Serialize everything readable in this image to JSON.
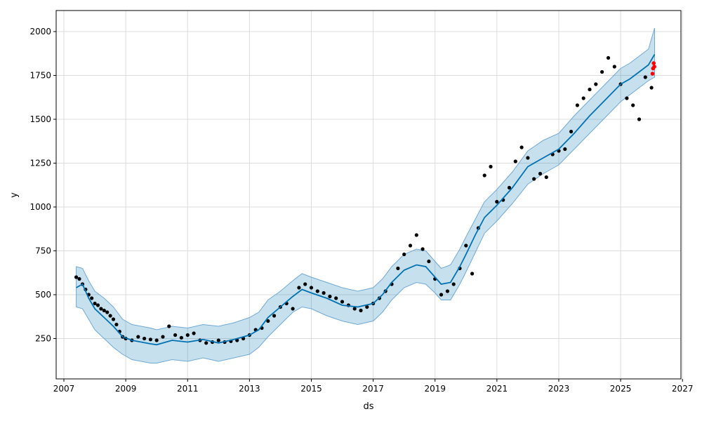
{
  "chart_data": {
    "type": "line",
    "title": "",
    "xlabel": "ds",
    "ylabel": "y",
    "xlim": [
      2006.75,
      2026.95
    ],
    "ylim": [
      20,
      2120
    ],
    "x_ticks": [
      2007,
      2009,
      2011,
      2013,
      2015,
      2017,
      2019,
      2021,
      2023,
      2025,
      2027
    ],
    "y_ticks": [
      250,
      500,
      750,
      1000,
      1250,
      1500,
      1750,
      2000
    ],
    "grid": true,
    "colors": {
      "forecast_line": "#0072B2",
      "uncertainty_band": "#0072B2",
      "observations": "#000000",
      "recent_actuals": "#FF0000"
    },
    "series": [
      {
        "kind": "uncertainty",
        "x": [
          2007.4,
          2007.6,
          2007.8,
          2008.0,
          2008.3,
          2008.6,
          2008.9,
          2009.2,
          2009.5,
          2009.8,
          2010.0,
          2010.5,
          2011.0,
          2011.5,
          2012.0,
          2012.5,
          2013.0,
          2013.3,
          2013.6,
          2014.0,
          2014.4,
          2014.7,
          2015.0,
          2015.5,
          2016.0,
          2016.5,
          2017.0,
          2017.3,
          2017.6,
          2018.0,
          2018.4,
          2018.7,
          2019.0,
          2019.2,
          2019.5,
          2019.8,
          2020.0,
          2020.3,
          2020.6,
          2021.0,
          2021.5,
          2022.0,
          2022.5,
          2023.0,
          2023.5,
          2024.0,
          2024.5,
          2025.0,
          2025.3,
          2025.6,
          2025.9,
          2026.1
        ],
        "upper": [
          660,
          650,
          580,
          520,
          480,
          430,
          360,
          330,
          320,
          310,
          300,
          320,
          310,
          330,
          320,
          340,
          370,
          400,
          470,
          520,
          580,
          620,
          600,
          570,
          540,
          520,
          540,
          590,
          660,
          730,
          760,
          750,
          690,
          650,
          670,
          760,
          830,
          930,
          1030,
          1100,
          1200,
          1320,
          1380,
          1420,
          1520,
          1610,
          1700,
          1790,
          1820,
          1860,
          1900,
          2020
        ],
        "lower": [
          430,
          420,
          360,
          300,
          250,
          200,
          160,
          130,
          120,
          110,
          110,
          130,
          120,
          140,
          120,
          140,
          160,
          200,
          260,
          330,
          400,
          430,
          420,
          380,
          350,
          330,
          350,
          400,
          470,
          540,
          570,
          560,
          510,
          470,
          470,
          560,
          630,
          740,
          850,
          920,
          1020,
          1130,
          1190,
          1240,
          1330,
          1420,
          1510,
          1600,
          1640,
          1680,
          1720,
          1740
        ]
      },
      {
        "kind": "forecast",
        "x": [
          2007.4,
          2007.6,
          2007.8,
          2008.0,
          2008.3,
          2008.6,
          2008.9,
          2009.2,
          2009.5,
          2009.8,
          2010.0,
          2010.5,
          2011.0,
          2011.5,
          2012.0,
          2012.5,
          2013.0,
          2013.3,
          2013.6,
          2014.0,
          2014.4,
          2014.7,
          2015.0,
          2015.5,
          2016.0,
          2016.5,
          2017.0,
          2017.3,
          2017.6,
          2018.0,
          2018.4,
          2018.7,
          2019.0,
          2019.2,
          2019.5,
          2019.8,
          2020.0,
          2020.3,
          2020.6,
          2021.0,
          2021.5,
          2022.0,
          2022.5,
          2023.0,
          2023.5,
          2024.0,
          2024.5,
          2025.0,
          2025.3,
          2025.6,
          2025.9,
          2026.1
        ],
        "y": [
          540,
          560,
          480,
          420,
          370,
          320,
          260,
          240,
          230,
          220,
          215,
          240,
          230,
          245,
          225,
          245,
          270,
          300,
          370,
          430,
          490,
          530,
          510,
          480,
          440,
          430,
          450,
          500,
          570,
          640,
          670,
          660,
          600,
          560,
          570,
          660,
          730,
          840,
          940,
          1010,
          1110,
          1230,
          1280,
          1330,
          1420,
          1520,
          1610,
          1700,
          1730,
          1770,
          1810,
          1870
        ]
      },
      {
        "kind": "observed",
        "x": [
          2007.4,
          2007.5,
          2007.6,
          2007.7,
          2007.8,
          2007.9,
          2008.0,
          2008.1,
          2008.2,
          2008.3,
          2008.4,
          2008.5,
          2008.6,
          2008.7,
          2008.8,
          2008.9,
          2009.0,
          2009.2,
          2009.4,
          2009.6,
          2009.8,
          2010.0,
          2010.2,
          2010.4,
          2010.6,
          2010.8,
          2011.0,
          2011.2,
          2011.4,
          2011.6,
          2011.8,
          2012.0,
          2012.2,
          2012.4,
          2012.6,
          2012.8,
          2013.0,
          2013.2,
          2013.4,
          2013.6,
          2013.8,
          2014.0,
          2014.2,
          2014.4,
          2014.6,
          2014.8,
          2015.0,
          2015.2,
          2015.4,
          2015.6,
          2015.8,
          2016.0,
          2016.2,
          2016.4,
          2016.6,
          2016.8,
          2017.0,
          2017.2,
          2017.4,
          2017.6,
          2017.8,
          2018.0,
          2018.2,
          2018.4,
          2018.6,
          2018.8,
          2019.0,
          2019.2,
          2019.4,
          2019.6,
          2019.8,
          2020.0,
          2020.2,
          2020.4,
          2020.6,
          2020.8,
          2021.0,
          2021.2,
          2021.4,
          2021.6,
          2021.8,
          2022.0,
          2022.2,
          2022.4,
          2022.6,
          2022.8,
          2023.0,
          2023.2,
          2023.4,
          2023.6,
          2023.8,
          2024.0,
          2024.2,
          2024.4,
          2024.6,
          2024.8,
          2025.0,
          2025.2,
          2025.4,
          2025.6,
          2025.8,
          2026.0
        ],
        "y": [
          600,
          590,
          560,
          530,
          500,
          480,
          450,
          440,
          420,
          410,
          400,
          380,
          360,
          330,
          290,
          260,
          250,
          240,
          260,
          250,
          245,
          240,
          260,
          320,
          270,
          255,
          270,
          280,
          240,
          225,
          230,
          240,
          230,
          235,
          240,
          250,
          270,
          300,
          310,
          350,
          380,
          430,
          450,
          420,
          540,
          560,
          540,
          520,
          510,
          490,
          480,
          460,
          440,
          420,
          410,
          430,
          450,
          480,
          520,
          560,
          650,
          730,
          780,
          840,
          760,
          690,
          590,
          500,
          520,
          560,
          650,
          780,
          620,
          880,
          1180,
          1230,
          1030,
          1040,
          1110,
          1260,
          1340,
          1280,
          1160,
          1190,
          1170,
          1300,
          1320,
          1330,
          1430,
          1580,
          1620,
          1670,
          1700,
          1770,
          1850,
          1800,
          1700,
          1620,
          1580,
          1500,
          1740,
          1680
        ]
      },
      {
        "kind": "recent",
        "x": [
          2026.03,
          2026.05,
          2026.07,
          2026.09
        ],
        "y": [
          1760,
          1790,
          1820,
          1800
        ]
      }
    ]
  }
}
